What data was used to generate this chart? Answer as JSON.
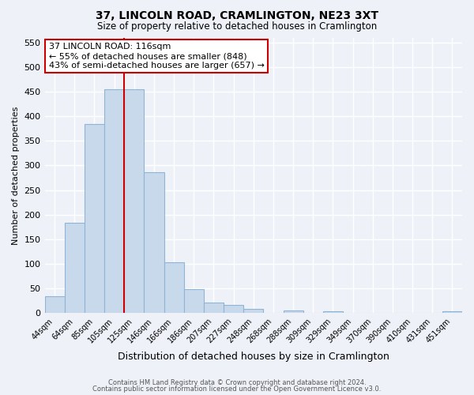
{
  "title": "37, LINCOLN ROAD, CRAMLINGTON, NE23 3XT",
  "subtitle": "Size of property relative to detached houses in Cramlington",
  "xlabel": "Distribution of detached houses by size in Cramlington",
  "ylabel": "Number of detached properties",
  "bar_labels": [
    "44sqm",
    "64sqm",
    "85sqm",
    "105sqm",
    "125sqm",
    "146sqm",
    "166sqm",
    "186sqm",
    "207sqm",
    "227sqm",
    "248sqm",
    "268sqm",
    "288sqm",
    "309sqm",
    "329sqm",
    "349sqm",
    "370sqm",
    "390sqm",
    "410sqm",
    "431sqm",
    "451sqm"
  ],
  "bar_values": [
    35,
    183,
    385,
    455,
    455,
    287,
    104,
    48,
    22,
    16,
    9,
    0,
    5,
    0,
    4,
    0,
    0,
    0,
    0,
    0,
    3
  ],
  "bar_color": "#c9d9ec",
  "bar_edgecolor": "#8fb4d4",
  "background_color": "#eef2f8",
  "grid_color": "#ffffff",
  "vline_x_index": 3.5,
  "vline_color": "#cc0000",
  "ylim": [
    0,
    560
  ],
  "yticks": [
    0,
    50,
    100,
    150,
    200,
    250,
    300,
    350,
    400,
    450,
    500,
    550
  ],
  "annotation_title": "37 LINCOLN ROAD: 116sqm",
  "annotation_line1": "← 55% of detached houses are smaller (848)",
  "annotation_line2": "43% of semi-detached houses are larger (657) →",
  "annotation_box_facecolor": "#ffffff",
  "annotation_box_edgecolor": "#cc0000",
  "footer_line1": "Contains HM Land Registry data © Crown copyright and database right 2024.",
  "footer_line2": "Contains public sector information licensed under the Open Government Licence v3.0."
}
